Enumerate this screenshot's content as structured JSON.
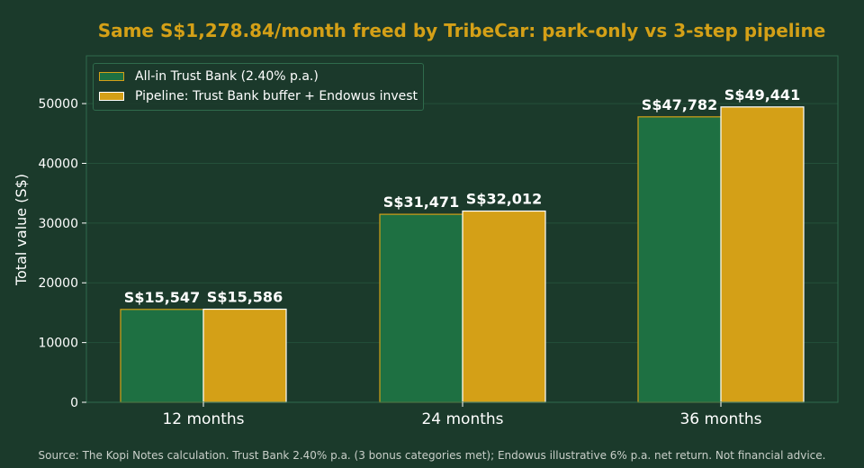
{
  "chart_data": {
    "type": "bar",
    "title": "Same S$1,278.84/month freed by TribeCar: park-only vs 3-step pipeline",
    "xlabel": "",
    "ylabel": "Total value (S$)",
    "categories": [
      "12 months",
      "24 months",
      "36 months"
    ],
    "ylim": [
      0,
      58000
    ],
    "yticks": [
      0,
      10000,
      20000,
      30000,
      40000,
      50000
    ],
    "grid": true,
    "legend_position": "top-left",
    "series": [
      {
        "name": "All-in Trust Bank (2.40% p.a.)",
        "values": [
          15547,
          31471,
          47782
        ],
        "labels": [
          "S$15,547",
          "S$31,471",
          "S$47,782"
        ],
        "color": "#1e7042",
        "edge": "#d4a017"
      },
      {
        "name": "Pipeline: Trust Bank buffer + Endowus invest",
        "values": [
          15586,
          32012,
          49441
        ],
        "labels": [
          "S$15,586",
          "S$32,012",
          "S$49,441"
        ],
        "color": "#d4a017",
        "edge": "#ffffff"
      }
    ]
  },
  "footer": {
    "source": "Source: The Kopi Notes calculation. Trust Bank 2.40% p.a. (3 bonus categories met); Endowus illustrative 6% p.a. net return. Not financial advice."
  },
  "colors": {
    "background": "#1b3a2b",
    "title": "#d4a017",
    "grid": "#24503a",
    "frame": "#2f6b4c"
  }
}
